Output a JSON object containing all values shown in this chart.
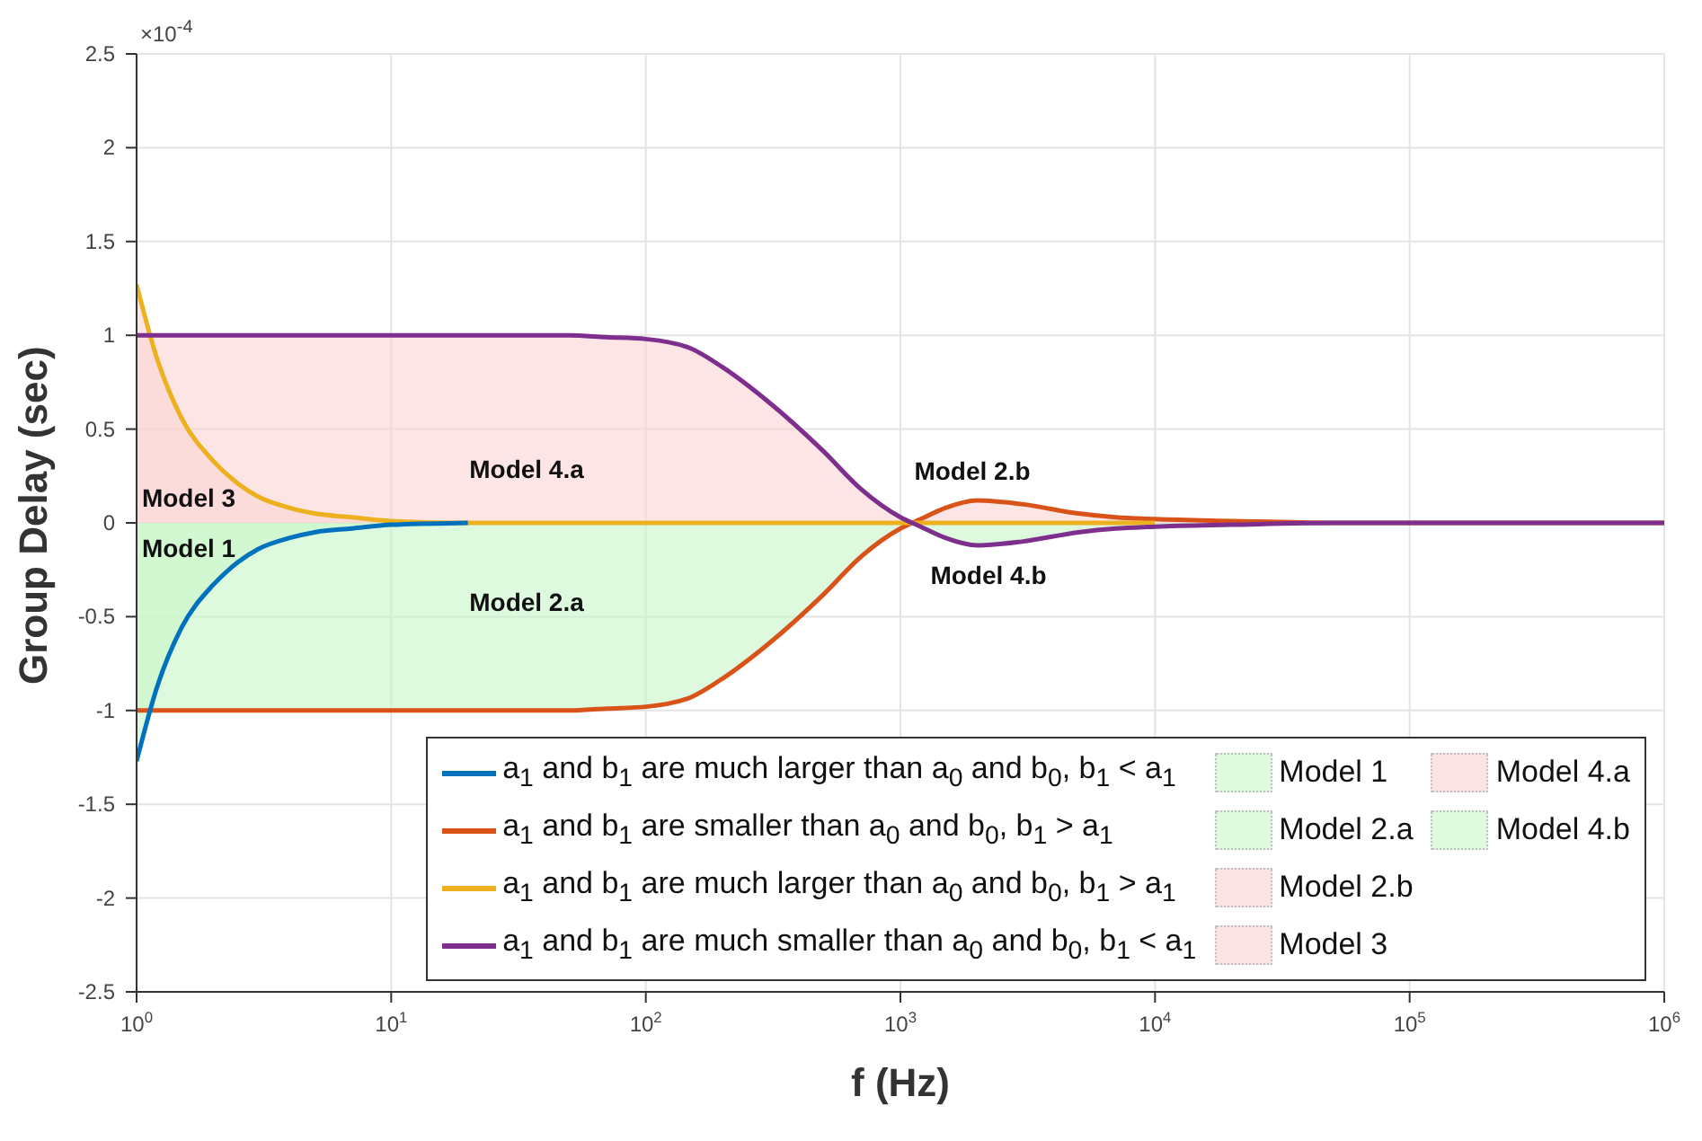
{
  "chart_data": {
    "type": "line",
    "xlabel": "f (Hz)",
    "ylabel": "Group Delay (sec)",
    "log": "x",
    "grid": true,
    "legend": "bottom right",
    "marker": "none",
    "line_style": "solid",
    "xlim": [
      1,
      1000000
    ],
    "ylim": [
      -2.5,
      2.5
    ],
    "xticks": [
      {
        "value": 1,
        "label": "10$^{0}$"
      },
      {
        "value": 10,
        "label": "10$^{1}$"
      },
      {
        "value": 100,
        "label": "10$^{2}$"
      },
      {
        "value": 1000,
        "label": "10$^{3}$"
      },
      {
        "value": 10000,
        "label": "10$^{4}$"
      },
      {
        "value": 100000,
        "label": "10$^{5}$"
      },
      {
        "value": 1000000,
        "label": "10$^{6}$"
      }
    ],
    "yticks": [
      -2.5,
      -2,
      -1.5,
      -1,
      -0.5,
      0,
      0.5,
      1,
      1.5,
      2,
      2.5
    ],
    "x": [
      1,
      1.2,
      1.5,
      2,
      2.5,
      3,
      4,
      5,
      7,
      10,
      20,
      30,
      50,
      70,
      100,
      150,
      200,
      300,
      500,
      700,
      1000,
      1200,
      1500,
      2000,
      3000,
      5000,
      7000,
      10000,
      20000,
      50000,
      100000,
      1000000
    ],
    "series": [
      {
        "name": "a$_{1}$ and b$_{1}$ are much larger than a$_{0}$ and b$_{0}$, b$_{1}$ < a$_{1}$",
        "color": "#0072bd",
        "values": [
          -1.27,
          -0.88,
          -0.56,
          -0.33,
          -0.21,
          -0.14,
          -0.08,
          -0.05,
          -0.03,
          -0.01,
          0,
          null,
          null,
          null,
          null,
          null,
          null,
          null,
          null,
          null,
          null,
          null,
          null,
          null,
          null,
          null,
          null,
          null,
          null,
          null,
          null,
          null
        ]
      },
      {
        "name": "a$_{1}$ and b$_{1}$ are smaller than a$_{0}$ and b$_{0}$, b$_{1}$ > a$_{1}$",
        "color": "#d95319",
        "values": [
          -1,
          -1,
          -1,
          -1,
          -1,
          -1,
          -1,
          -1,
          -1,
          -1,
          -1,
          -1,
          -1,
          -0.99,
          -0.98,
          -0.93,
          -0.83,
          -0.65,
          -0.38,
          -0.18,
          -0.03,
          0.02,
          0.08,
          0.12,
          0.1,
          0.05,
          0.03,
          0.02,
          0.01,
          0,
          0,
          0
        ]
      },
      {
        "name": "a$_{1}$ and b$_{1}$ are much larger than a$_{0}$ and b$_{0}$, b$_{1}$ > a$_{1}$",
        "color": "#edb120",
        "values": [
          1.27,
          0.88,
          0.56,
          0.33,
          0.21,
          0.14,
          0.08,
          0.05,
          0.03,
          0.01,
          0,
          0,
          0,
          0,
          0,
          0,
          0,
          0,
          0,
          0,
          0,
          0,
          0,
          0,
          0,
          0,
          0,
          0,
          null,
          null,
          null,
          null
        ]
      },
      {
        "name": "a$_{1}$ and b$_{1}$ are much smaller than a$_{0}$ and b$_{0}$, b$_{1}$ < a$_{1}$",
        "color": "#7e2f8e",
        "values": [
          1,
          1,
          1,
          1,
          1,
          1,
          1,
          1,
          1,
          1,
          1,
          1,
          1,
          0.99,
          0.98,
          0.93,
          0.83,
          0.65,
          0.38,
          0.18,
          0.03,
          -0.02,
          -0.08,
          -0.12,
          -0.1,
          -0.05,
          -0.03,
          -0.02,
          -0.01,
          0,
          0,
          0
        ]
      },
      {
        "name": "Model 1",
        "type": "area",
        "color": "#c8f7c8",
        "values": [
          -1.27,
          -0.88,
          -0.56,
          -0.33,
          -0.21,
          -0.14,
          -0.08,
          -0.05,
          -0.03,
          -0.01,
          0,
          0,
          null,
          null,
          null,
          null,
          null,
          null,
          null,
          null,
          null,
          null,
          null,
          null,
          null,
          null,
          null,
          null,
          null,
          null,
          null,
          null
        ]
      },
      {
        "name": "Model 2.a",
        "type": "area",
        "color": "#c8f7c8",
        "values": [
          -1,
          -1,
          -1,
          -1,
          -1,
          -1,
          -1,
          -1,
          -1,
          -1,
          -1,
          -1,
          -1,
          -0.99,
          -0.98,
          -0.93,
          -0.83,
          -0.65,
          -0.38,
          -0.18,
          -0.03,
          null,
          null,
          null,
          null,
          null,
          null,
          null,
          null,
          null,
          null,
          null
        ]
      },
      {
        "name": "Model 2.b",
        "type": "area",
        "color": "#fbd3d3",
        "values": [
          null,
          null,
          null,
          null,
          null,
          null,
          null,
          null,
          null,
          null,
          null,
          null,
          null,
          null,
          null,
          null,
          null,
          null,
          null,
          null,
          null,
          0.02,
          0.08,
          0.12,
          0.1,
          0.05,
          0.03,
          0.02,
          0.01,
          0,
          null,
          null
        ]
      },
      {
        "name": "Model 3",
        "type": "area",
        "color": "#fbd3d3",
        "values": [
          1.27,
          0.88,
          0.56,
          0.33,
          0.21,
          0.14,
          0.08,
          0.05,
          0.03,
          0.01,
          0,
          0,
          null,
          null,
          null,
          null,
          null,
          null,
          null,
          null,
          null,
          null,
          null,
          null,
          null,
          null,
          null,
          null,
          null,
          null,
          null,
          null
        ]
      },
      {
        "name": "Model 4.a",
        "type": "area",
        "color": "#fbd3d3",
        "values": [
          1,
          1,
          1,
          1,
          1,
          1,
          1,
          1,
          1,
          1,
          1,
          1,
          1,
          0.99,
          0.98,
          0.93,
          0.83,
          0.65,
          0.38,
          0.18,
          0.03,
          null,
          null,
          null,
          null,
          null,
          null,
          null,
          null,
          null,
          null,
          null
        ]
      },
      {
        "name": "Model 4.b",
        "type": "area",
        "color": "#c8f7c8",
        "values": [
          null,
          null,
          null,
          null,
          null,
          null,
          null,
          null,
          null,
          null,
          null,
          null,
          null,
          null,
          null,
          null,
          null,
          null,
          null,
          null,
          null,
          -0.02,
          -0.08,
          -0.12,
          -0.1,
          -0.05,
          -0.03,
          -0.02,
          -0.01,
          0,
          null,
          null
        ]
      }
    ],
    "annotations": [
      "×10$^{-4}$",
      "Model 4.a",
      "Model 3",
      "Model 1",
      "Model 2.a",
      "Model 2.b",
      "Model 4.b"
    ]
  }
}
